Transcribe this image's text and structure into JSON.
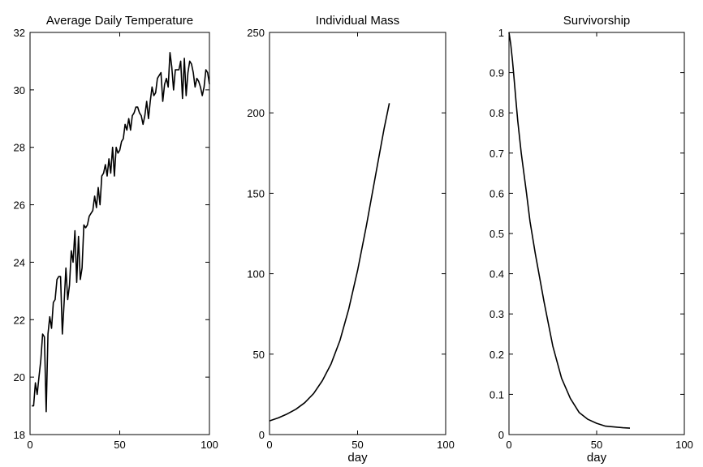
{
  "chart_data": [
    {
      "type": "line",
      "title": "Average Daily Temperature",
      "xlabel": "",
      "ylabel": "",
      "xlim": [
        0,
        100
      ],
      "ylim": [
        18,
        32
      ],
      "xticks": [
        0,
        50,
        100
      ],
      "yticks": [
        18,
        20,
        22,
        24,
        26,
        28,
        30,
        32
      ],
      "grid": false,
      "series": [
        {
          "x": [
            1,
            2,
            3,
            4,
            5,
            6,
            7,
            8,
            9,
            10,
            11,
            12,
            13,
            14,
            15,
            16,
            17,
            18,
            19,
            20,
            21,
            22,
            23,
            24,
            25,
            26,
            27,
            28,
            29,
            30,
            31,
            32,
            33,
            34,
            35,
            36,
            37,
            38,
            39,
            40,
            41,
            42,
            43,
            44,
            45,
            46,
            47,
            48,
            49,
            50,
            51,
            52,
            53,
            54,
            55,
            56,
            57,
            58,
            59,
            60,
            61,
            62,
            63,
            64,
            65,
            66,
            67,
            68,
            69,
            70,
            71,
            72,
            73,
            74,
            75,
            76,
            77,
            78,
            79,
            80,
            81,
            82,
            83,
            84,
            85,
            86,
            87,
            88,
            89,
            90,
            91,
            92,
            93,
            94,
            95,
            96,
            97,
            98,
            99,
            100
          ],
          "y": [
            19.0,
            19.0,
            19.8,
            19.4,
            20.0,
            20.6,
            21.5,
            21.4,
            18.8,
            21.5,
            22.1,
            21.7,
            22.6,
            22.7,
            23.4,
            23.5,
            23.5,
            21.5,
            22.6,
            23.8,
            22.7,
            23.2,
            24.4,
            24.0,
            25.1,
            23.3,
            24.9,
            23.4,
            23.8,
            25.3,
            25.2,
            25.3,
            25.6,
            25.7,
            25.8,
            26.3,
            25.9,
            26.6,
            26.0,
            27.0,
            27.1,
            27.4,
            27.0,
            27.6,
            27.1,
            28.0,
            27.0,
            28.0,
            27.8,
            27.9,
            28.2,
            28.3,
            28.8,
            28.6,
            29.0,
            28.6,
            29.1,
            29.2,
            29.4,
            29.4,
            29.2,
            29.1,
            28.8,
            29.1,
            29.6,
            29.0,
            29.6,
            30.1,
            29.8,
            29.9,
            30.4,
            30.5,
            30.6,
            29.6,
            30.2,
            30.4,
            30.1,
            31.3,
            30.8,
            30.0,
            30.7,
            30.7,
            30.7,
            31.0,
            29.7,
            31.1,
            29.8,
            30.6,
            31.0,
            30.9,
            30.6,
            30.1,
            30.4,
            30.3,
            30.1,
            29.8,
            30.1,
            30.7,
            30.6,
            30.2
          ]
        }
      ]
    },
    {
      "type": "line",
      "title": "Individual Mass",
      "xlabel": "day",
      "ylabel": "",
      "xlim": [
        0,
        100
      ],
      "ylim": [
        0,
        250
      ],
      "xticks": [
        0,
        50,
        100
      ],
      "yticks": [
        0,
        50,
        100,
        150,
        200,
        250
      ],
      "grid": false,
      "series": [
        {
          "x": [
            0,
            5,
            10,
            15,
            20,
            25,
            30,
            35,
            40,
            45,
            50,
            55,
            60,
            65,
            68
          ],
          "y": [
            8.5,
            10.4,
            12.8,
            15.8,
            19.8,
            25.5,
            33.5,
            44.0,
            58.5,
            78.0,
            102.0,
            130.0,
            160.0,
            190.0,
            206.0
          ]
        }
      ]
    },
    {
      "type": "line",
      "title": "Survivorship",
      "xlabel": "day",
      "ylabel": "",
      "xlim": [
        0,
        100
      ],
      "ylim": [
        0,
        1
      ],
      "xticks": [
        0,
        50,
        100
      ],
      "yticks": [
        0,
        0.1,
        0.2,
        0.3,
        0.4,
        0.5,
        0.6,
        0.7,
        0.8,
        0.9,
        1
      ],
      "grid": false,
      "series": [
        {
          "x": [
            0,
            1,
            2,
            3,
            4,
            5,
            7,
            10,
            12,
            15,
            20,
            25,
            30,
            35,
            40,
            45,
            50,
            55,
            60,
            65,
            69
          ],
          "y": [
            1.0,
            0.97,
            0.93,
            0.88,
            0.83,
            0.78,
            0.7,
            0.6,
            0.53,
            0.45,
            0.33,
            0.22,
            0.14,
            0.09,
            0.055,
            0.038,
            0.028,
            0.021,
            0.019,
            0.017,
            0.016
          ]
        }
      ]
    }
  ]
}
